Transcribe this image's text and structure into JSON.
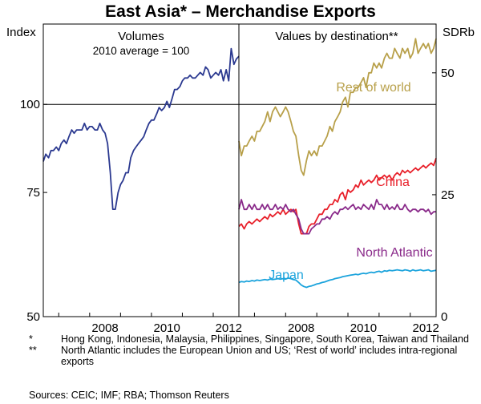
{
  "chart_data": {
    "type": "line",
    "title": "East Asia* – Merchandise Exports",
    "left_axis_label": "Index",
    "right_axis_label": "SDRb",
    "x_ticks": [
      "2008",
      "2010",
      "2012"
    ],
    "left_yticks": [
      "100",
      "75",
      "50"
    ],
    "right_yticks": [
      "50",
      "25",
      "0"
    ],
    "colors": {
      "volumes": "#2b3990",
      "rest_of_world": "#b8a04a",
      "china": "#e8202a",
      "north_atlantic": "#8a2a8a",
      "japan": "#1ba3dc"
    },
    "panels": [
      {
        "title": "Volumes",
        "subtitle": "2010 average = 100",
        "x_range": [
          2006.5,
          2012.83
        ],
        "y_scale": "log",
        "y_range": [
          50,
          130
        ],
        "series": [
          {
            "key": "volumes",
            "x": [
              2006.5,
              2006.58,
              2006.67,
              2006.75,
              2006.83,
              2006.92,
              2007.0,
              2007.08,
              2007.17,
              2007.25,
              2007.33,
              2007.42,
              2007.5,
              2007.58,
              2007.67,
              2007.75,
              2007.83,
              2007.92,
              2008.0,
              2008.08,
              2008.17,
              2008.25,
              2008.33,
              2008.42,
              2008.5,
              2008.58,
              2008.67,
              2008.75,
              2008.83,
              2008.92,
              2009.0,
              2009.08,
              2009.17,
              2009.25,
              2009.33,
              2009.42,
              2009.5,
              2009.58,
              2009.67,
              2009.75,
              2009.83,
              2009.92,
              2010.0,
              2010.08,
              2010.17,
              2010.25,
              2010.33,
              2010.42,
              2010.5,
              2010.58,
              2010.67,
              2010.75,
              2010.83,
              2010.92,
              2011.0,
              2011.08,
              2011.17,
              2011.25,
              2011.33,
              2011.42,
              2011.5,
              2011.58,
              2011.67,
              2011.75,
              2011.83,
              2011.92,
              2012.0,
              2012.08,
              2012.17,
              2012.25,
              2012.33,
              2012.42,
              2012.5,
              2012.58,
              2012.67,
              2012.75,
              2012.83
            ],
            "values": [
              83,
              85,
              84,
              86,
              86,
              87,
              86,
              88,
              89,
              88,
              90,
              92,
              91,
              92,
              92,
              92,
              94,
              92,
              93,
              93,
              92,
              92,
              94,
              92,
              91,
              88,
              80,
              71,
              71,
              75,
              77,
              78,
              80,
              80,
              84,
              86,
              87,
              88,
              89,
              90,
              92,
              94,
              95,
              95,
              97,
              99,
              98,
              99,
              101,
              99,
              102,
              105,
              105,
              106,
              108,
              109,
              109,
              110,
              109,
              109,
              110,
              111,
              110,
              113,
              112,
              109,
              110,
              111,
              110,
              112,
              108,
              112,
              108,
              120,
              114,
              116,
              117
            ]
          }
        ]
      },
      {
        "title": "Values by destination**",
        "x_range": [
          2006.5,
          2012.83
        ],
        "y_range": [
          0,
          60
        ],
        "series": [
          {
            "key": "rest_of_world",
            "name": "Rest of world",
            "x": [
              2006.5,
              2006.58,
              2006.67,
              2006.75,
              2006.83,
              2006.92,
              2007.0,
              2007.08,
              2007.17,
              2007.25,
              2007.33,
              2007.42,
              2007.5,
              2007.58,
              2007.67,
              2007.75,
              2007.83,
              2007.92,
              2008.0,
              2008.08,
              2008.17,
              2008.25,
              2008.33,
              2008.42,
              2008.5,
              2008.58,
              2008.67,
              2008.75,
              2008.83,
              2008.92,
              2009.0,
              2009.08,
              2009.17,
              2009.25,
              2009.33,
              2009.42,
              2009.5,
              2009.58,
              2009.67,
              2009.75,
              2009.83,
              2009.92,
              2010.0,
              2010.08,
              2010.17,
              2010.25,
              2010.33,
              2010.42,
              2010.5,
              2010.58,
              2010.67,
              2010.75,
              2010.83,
              2010.92,
              2011.0,
              2011.08,
              2011.17,
              2011.25,
              2011.33,
              2011.42,
              2011.5,
              2011.58,
              2011.67,
              2011.75,
              2011.83,
              2011.92,
              2012.0,
              2012.08,
              2012.17,
              2012.25,
              2012.33,
              2012.42,
              2012.5,
              2012.58,
              2012.67,
              2012.75,
              2012.83
            ],
            "values": [
              36,
              33,
              35,
              35,
              36,
              37,
              36,
              38,
              38,
              39,
              40,
              42,
              40,
              42,
              43,
              42,
              41,
              42,
              43,
              42,
              40,
              38,
              37,
              33,
              30,
              29,
              32,
              34,
              33,
              34,
              33,
              35,
              35,
              36,
              37,
              39,
              38,
              40,
              41,
              42,
              44,
              45,
              43,
              46,
              46,
              47,
              47,
              48,
              49,
              47,
              50,
              50,
              52,
              51,
              52,
              51,
              53,
              54,
              53,
              53,
              55,
              54,
              53,
              55,
              54,
              55,
              53,
              54,
              57,
              54,
              55,
              56,
              55,
              56,
              54,
              55,
              57
            ]
          },
          {
            "key": "china",
            "name": "China",
            "x": [
              2006.5,
              2006.58,
              2006.67,
              2006.75,
              2006.83,
              2006.92,
              2007.0,
              2007.08,
              2007.17,
              2007.25,
              2007.33,
              2007.42,
              2007.5,
              2007.58,
              2007.67,
              2007.75,
              2007.83,
              2007.92,
              2008.0,
              2008.08,
              2008.17,
              2008.25,
              2008.33,
              2008.42,
              2008.5,
              2008.58,
              2008.67,
              2008.75,
              2008.83,
              2008.92,
              2009.0,
              2009.08,
              2009.17,
              2009.25,
              2009.33,
              2009.42,
              2009.5,
              2009.58,
              2009.67,
              2009.75,
              2009.83,
              2009.92,
              2010.0,
              2010.08,
              2010.17,
              2010.25,
              2010.33,
              2010.42,
              2010.5,
              2010.58,
              2010.67,
              2010.75,
              2010.83,
              2010.92,
              2011.0,
              2011.08,
              2011.17,
              2011.25,
              2011.33,
              2011.42,
              2011.5,
              2011.58,
              2011.67,
              2011.75,
              2011.83,
              2011.92,
              2012.0,
              2012.08,
              2012.17,
              2012.25,
              2012.33,
              2012.42,
              2012.5,
              2012.58,
              2012.67,
              2012.75,
              2012.83
            ],
            "values": [
              18.5,
              19,
              18,
              19,
              19.5,
              19,
              19.5,
              20,
              19.5,
              20,
              20.5,
              20,
              21,
              20.5,
              21,
              21.5,
              21,
              22,
              21,
              21.5,
              22,
              21.5,
              22,
              19,
              17,
              17,
              17,
              18.5,
              19,
              19,
              20,
              21,
              21,
              22,
              22,
              23,
              23,
              24,
              23.5,
              25,
              25.5,
              24,
              26,
              25.5,
              26,
              27,
              26.5,
              28,
              27,
              27.5,
              28,
              27.5,
              28,
              29,
              28,
              28.5,
              29,
              28.5,
              29,
              28,
              29,
              29.5,
              29,
              30,
              29.5,
              30,
              29.5,
              30,
              30.5,
              30,
              30.5,
              31,
              30.5,
              31,
              31.5,
              31,
              32.5
            ]
          },
          {
            "key": "north_atlantic",
            "name": "North Atlantic",
            "x": [
              2006.5,
              2006.58,
              2006.67,
              2006.75,
              2006.83,
              2006.92,
              2007.0,
              2007.08,
              2007.17,
              2007.25,
              2007.33,
              2007.42,
              2007.5,
              2007.58,
              2007.67,
              2007.75,
              2007.83,
              2007.92,
              2008.0,
              2008.08,
              2008.17,
              2008.25,
              2008.33,
              2008.42,
              2008.5,
              2008.58,
              2008.67,
              2008.75,
              2008.83,
              2008.92,
              2009.0,
              2009.08,
              2009.17,
              2009.25,
              2009.33,
              2009.42,
              2009.5,
              2009.58,
              2009.67,
              2009.75,
              2009.83,
              2009.92,
              2010.0,
              2010.08,
              2010.17,
              2010.25,
              2010.33,
              2010.42,
              2010.5,
              2010.58,
              2010.67,
              2010.75,
              2010.83,
              2010.92,
              2011.0,
              2011.08,
              2011.17,
              2011.25,
              2011.33,
              2011.42,
              2011.5,
              2011.58,
              2011.67,
              2011.75,
              2011.83,
              2011.92,
              2012.0,
              2012.08,
              2012.17,
              2012.25,
              2012.33,
              2012.42,
              2012.5,
              2012.58,
              2012.67,
              2012.75,
              2012.83
            ],
            "values": [
              22,
              24,
              22,
              22,
              23,
              22,
              23,
              22,
              22,
              23,
              22,
              23,
              22,
              22,
              23,
              22,
              22.5,
              22,
              23,
              22,
              21.5,
              22,
              21,
              20,
              18,
              17,
              17,
              17,
              18,
              18.5,
              19,
              19,
              20,
              20,
              20.5,
              20,
              21,
              21.5,
              21,
              22,
              22,
              22.5,
              22,
              22.5,
              23,
              22,
              22.5,
              22,
              23,
              22.5,
              22,
              23,
              22,
              24,
              23,
              23,
              22,
              23,
              22,
              22.5,
              22,
              23,
              22,
              22,
              23,
              22,
              21.5,
              22,
              22,
              21.5,
              22,
              22,
              21.5,
              22,
              21,
              21.5,
              21.5
            ]
          },
          {
            "key": "japan",
            "name": "Japan",
            "x": [
              2006.5,
              2006.58,
              2006.67,
              2006.75,
              2006.83,
              2006.92,
              2007.0,
              2007.08,
              2007.17,
              2007.25,
              2007.33,
              2007.42,
              2007.5,
              2007.58,
              2007.67,
              2007.75,
              2007.83,
              2007.92,
              2008.0,
              2008.08,
              2008.17,
              2008.25,
              2008.33,
              2008.42,
              2008.5,
              2008.58,
              2008.67,
              2008.75,
              2008.83,
              2008.92,
              2009.0,
              2009.08,
              2009.17,
              2009.25,
              2009.33,
              2009.42,
              2009.5,
              2009.58,
              2009.67,
              2009.75,
              2009.83,
              2009.92,
              2010.0,
              2010.08,
              2010.17,
              2010.25,
              2010.33,
              2010.42,
              2010.5,
              2010.58,
              2010.67,
              2010.75,
              2010.83,
              2010.92,
              2011.0,
              2011.08,
              2011.17,
              2011.25,
              2011.33,
              2011.42,
              2011.5,
              2011.58,
              2011.67,
              2011.75,
              2011.83,
              2011.92,
              2012.0,
              2012.08,
              2012.17,
              2012.25,
              2012.33,
              2012.42,
              2012.5,
              2012.58,
              2012.67,
              2012.75,
              2012.83
            ],
            "values": [
              7,
              7.2,
              7.1,
              7.3,
              7.2,
              7.4,
              7.3,
              7.5,
              7.4,
              7.5,
              7.6,
              7.5,
              7.7,
              7.6,
              7.7,
              7.8,
              7.7,
              7.8,
              7.7,
              7.9,
              7.8,
              7.6,
              7.5,
              7,
              6.5,
              6.2,
              6,
              6.2,
              6.3,
              6.5,
              6.7,
              6.8,
              7,
              7.1,
              7.3,
              7.5,
              7.6,
              7.8,
              7.9,
              8,
              8.2,
              8.3,
              8.4,
              8.5,
              8.6,
              8.7,
              8.6,
              8.8,
              8.9,
              8.8,
              9,
              9.1,
              9,
              9.2,
              9.3,
              9.1,
              9.4,
              9.3,
              9.5,
              9.4,
              9.5,
              9.6,
              9.5,
              9.4,
              9.6,
              9.5,
              9.3,
              9.6,
              9.4,
              9.5,
              9.6,
              9.4,
              9.5,
              9.6,
              9.3,
              9.4,
              9.5
            ]
          }
        ]
      }
    ]
  },
  "notes": [
    {
      "mark": "*",
      "text": "Hong Kong, Indonesia, Malaysia, Philippines, Singapore, South Korea, Taiwan and Thailand"
    },
    {
      "mark": "**",
      "text": "North Atlantic includes the European Union and US; ‘Rest of world’ includes intra-regional exports"
    }
  ],
  "sources": "Sources: CEIC; IMF; RBA; Thomson Reuters"
}
